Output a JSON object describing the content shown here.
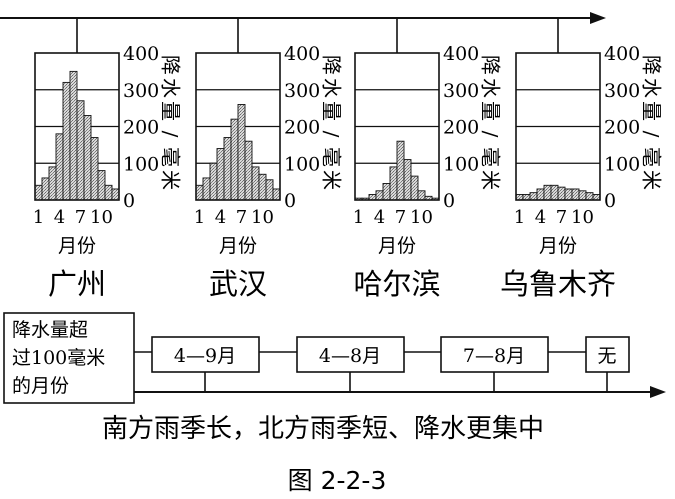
{
  "figure_caption": "图 2-2-3",
  "conclusion": "南方雨季长，北方雨季短、降水更集中",
  "months_over_label": "降水量超过100毫米的月份",
  "months_over_label_lines": [
    "降水量超",
    "过100毫米",
    "的月份"
  ],
  "chart_data": [
    {
      "type": "bar",
      "title": "广州",
      "categories": [
        "1",
        "2",
        "3",
        "4",
        "5",
        "6",
        "7",
        "8",
        "9",
        "10",
        "11",
        "12"
      ],
      "values": [
        40,
        60,
        90,
        180,
        320,
        350,
        270,
        230,
        170,
        80,
        40,
        30
      ],
      "xlabel": "月份",
      "ylabel": "降水量/毫米",
      "xticks": [
        "1",
        "4",
        "7",
        "10"
      ],
      "yticks": [
        "0",
        "100",
        "200",
        "300",
        "400"
      ],
      "ylim": [
        0,
        400
      ],
      "months_over_100": "4—9月"
    },
    {
      "type": "bar",
      "title": "武汉",
      "categories": [
        "1",
        "2",
        "3",
        "4",
        "5",
        "6",
        "7",
        "8",
        "9",
        "10",
        "11",
        "12"
      ],
      "values": [
        40,
        60,
        100,
        140,
        170,
        220,
        260,
        160,
        90,
        70,
        55,
        30
      ],
      "xlabel": "月份",
      "ylabel": "降水量/毫米",
      "xticks": [
        "1",
        "4",
        "7",
        "10"
      ],
      "yticks": [
        "0",
        "100",
        "200",
        "300",
        "400"
      ],
      "ylim": [
        0,
        400
      ],
      "months_over_100": "4—8月"
    },
    {
      "type": "bar",
      "title": "哈尔滨",
      "categories": [
        "1",
        "2",
        "3",
        "4",
        "5",
        "6",
        "7",
        "8",
        "9",
        "10",
        "11",
        "12"
      ],
      "values": [
        5,
        5,
        15,
        25,
        45,
        90,
        160,
        110,
        65,
        25,
        10,
        5
      ],
      "xlabel": "月份",
      "ylabel": "降水量/毫米",
      "xticks": [
        "1",
        "4",
        "7",
        "10"
      ],
      "yticks": [
        "0",
        "100",
        "200",
        "300",
        "400"
      ],
      "ylim": [
        0,
        400
      ],
      "months_over_100": "7—8月"
    },
    {
      "type": "bar",
      "title": "乌鲁木齐",
      "categories": [
        "1",
        "2",
        "3",
        "4",
        "5",
        "6",
        "7",
        "8",
        "9",
        "10",
        "11",
        "12"
      ],
      "values": [
        15,
        15,
        20,
        30,
        40,
        40,
        35,
        30,
        30,
        25,
        20,
        15
      ],
      "xlabel": "月份",
      "ylabel": "降水量/毫米",
      "xticks": [
        "1",
        "4",
        "7",
        "10"
      ],
      "yticks": [
        "0",
        "100",
        "200",
        "300",
        "400"
      ],
      "ylim": [
        0,
        400
      ],
      "months_over_100": "无"
    }
  ]
}
